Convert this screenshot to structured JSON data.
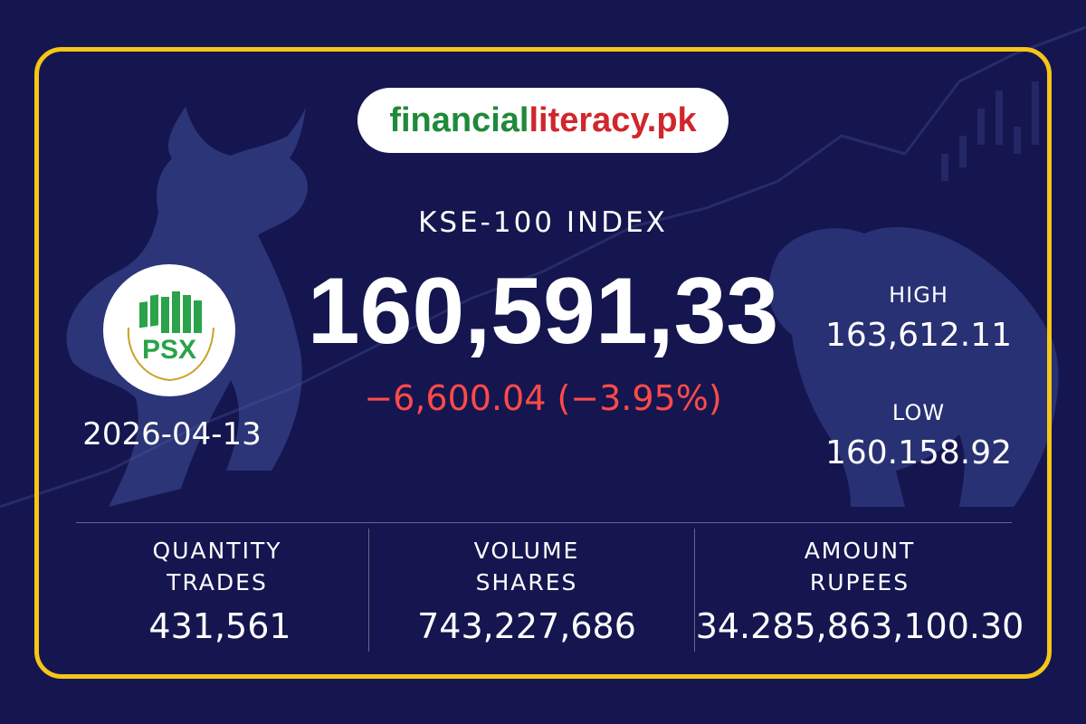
{
  "brand": {
    "part1": "financial",
    "part2": "literacy.pk"
  },
  "index": {
    "title": "KSE-100 INDEX",
    "value": "160,591,33",
    "change": "−6,600.04 (−3.95%)"
  },
  "logo": {
    "text": "PSX"
  },
  "date": "2026-04-13",
  "high": {
    "label": "HIGH",
    "value": "163,612.11"
  },
  "low": {
    "label": "LOW",
    "value": "160.158.92"
  },
  "stats": [
    {
      "label1": "QUANTITY",
      "label2": "TRADES",
      "value": "431,561"
    },
    {
      "label1": "VOLUME",
      "label2": "SHARES",
      "value": "743,227,686"
    },
    {
      "label1": "AMOUNT",
      "label2": "RUPEES",
      "value": "34.285,863,100.30"
    }
  ],
  "colors": {
    "background": "#15164f",
    "border": "#f5c518",
    "negative": "#ff4a4a",
    "brand_green": "#1f8a3a",
    "brand_red": "#d0262c"
  },
  "icons": [
    "bull-silhouette-icon",
    "bear-silhouette-icon",
    "psx-logo-icon"
  ]
}
